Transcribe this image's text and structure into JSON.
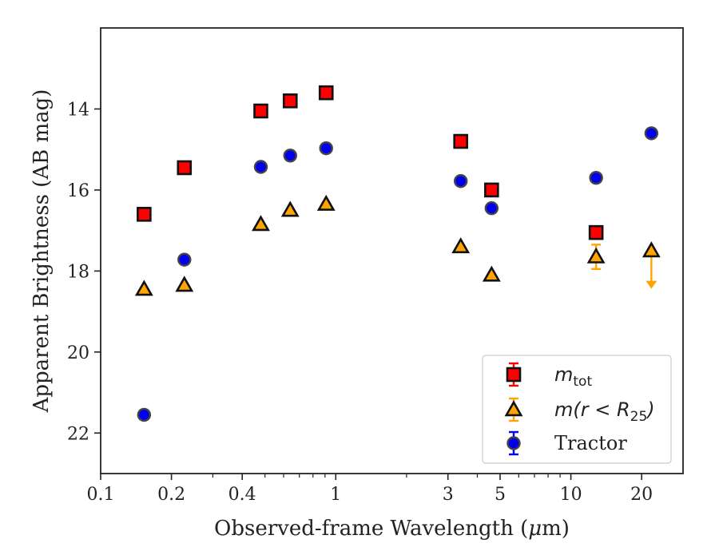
{
  "chart_data": {
    "type": "scatter",
    "xlabel_prefix": "Observed-frame Wavelength (",
    "xlabel_mu": "μ",
    "xlabel_suffix": "m)",
    "ylabel": "Apparent Brightness (AB mag)",
    "xscale": "log",
    "xlim": [
      0.1,
      30
    ],
    "ylim": [
      23,
      12
    ],
    "y_inverted": true,
    "x_ticks": [
      0.1,
      0.2,
      0.4,
      1,
      3,
      5,
      10,
      20
    ],
    "x_tick_labels": [
      "0.1",
      "0.2",
      "0.4",
      "1",
      "3",
      "5",
      "10",
      "20"
    ],
    "y_ticks": [
      14,
      16,
      18,
      20,
      22
    ],
    "y_tick_labels": [
      "14",
      "16",
      "18",
      "20",
      "22"
    ],
    "legend_position": "bottom-right",
    "series": [
      {
        "key": "mtot",
        "legend_main": "m",
        "legend_sub": "tot",
        "marker": "square",
        "fill": "#ff0000",
        "edge": "#111111",
        "errcolor": "#ff0000",
        "points": [
          {
            "x": 0.153,
            "y": 16.6
          },
          {
            "x": 0.227,
            "y": 15.45
          },
          {
            "x": 0.48,
            "y": 14.05
          },
          {
            "x": 0.64,
            "y": 13.8
          },
          {
            "x": 0.91,
            "y": 13.6
          },
          {
            "x": 3.4,
            "y": 14.8
          },
          {
            "x": 4.6,
            "y": 16.0
          },
          {
            "x": 12.8,
            "y": 17.05
          }
        ]
      },
      {
        "key": "mr25",
        "legend_main": "m(r < R",
        "legend_sub": "25",
        "legend_tail": ")",
        "marker": "triangle",
        "fill": "#ffa500",
        "edge": "#111111",
        "errcolor": "#ffa500",
        "points": [
          {
            "x": 0.153,
            "y": 18.45
          },
          {
            "x": 0.227,
            "y": 18.35
          },
          {
            "x": 0.48,
            "y": 16.85
          },
          {
            "x": 0.64,
            "y": 16.5
          },
          {
            "x": 0.91,
            "y": 16.35
          },
          {
            "x": 3.4,
            "y": 17.4
          },
          {
            "x": 4.6,
            "y": 18.1
          },
          {
            "x": 12.8,
            "y": 17.65,
            "err": 0.3
          },
          {
            "x": 22.0,
            "y": 17.5,
            "upper_limit": true,
            "arrow_to": 18.4
          }
        ]
      },
      {
        "key": "tractor",
        "legend_main": "Tractor",
        "marker": "circle",
        "fill": "#0000ee",
        "edge": "#444444",
        "errcolor": "#0000ff",
        "points": [
          {
            "x": 0.153,
            "y": 21.55
          },
          {
            "x": 0.227,
            "y": 17.72
          },
          {
            "x": 0.48,
            "y": 15.43
          },
          {
            "x": 0.64,
            "y": 15.15
          },
          {
            "x": 0.91,
            "y": 14.97
          },
          {
            "x": 3.4,
            "y": 15.78
          },
          {
            "x": 4.6,
            "y": 16.45
          },
          {
            "x": 12.8,
            "y": 15.7
          },
          {
            "x": 22.0,
            "y": 14.6
          }
        ]
      }
    ]
  }
}
